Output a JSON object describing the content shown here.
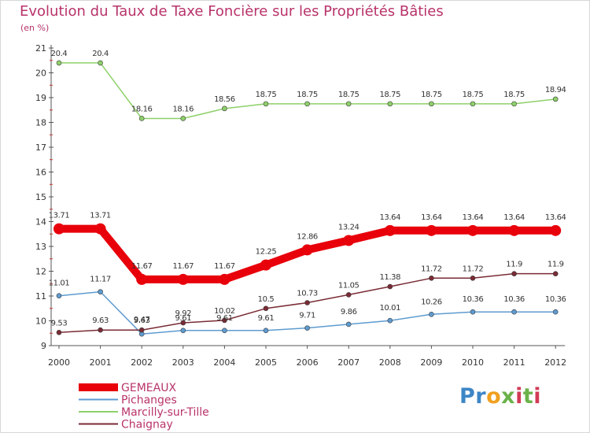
{
  "chart_data": {
    "type": "line",
    "title": "Evolution du Taux de Taxe Foncière sur les Propriétés Bâties",
    "subtitle": "(en %)",
    "xlabel": "",
    "ylabel": "",
    "ylim": [
      9,
      21
    ],
    "yticks": [
      "9",
      "10",
      "11",
      "12",
      "13",
      "14",
      "15",
      "16",
      "17",
      "18",
      "19",
      "20",
      "21"
    ],
    "categories": [
      "2000",
      "2001",
      "2002",
      "2003",
      "2004",
      "2005",
      "2006",
      "2007",
      "2008",
      "2009",
      "2010",
      "2011",
      "2012"
    ],
    "series": [
      {
        "name": "GEMEAUX",
        "color": "#e8000b",
        "values": [
          13.71,
          13.71,
          11.67,
          11.67,
          11.67,
          12.25,
          12.86,
          13.24,
          13.64,
          13.64,
          13.64,
          13.64,
          13.64
        ],
        "labels": [
          "13.71",
          "13.71",
          "11.67",
          "11.67",
          "11.67",
          "12.25",
          "12.86",
          "13.24",
          "13.64",
          "13.64",
          "13.64",
          "13.64",
          "13.64"
        ]
      },
      {
        "name": "Pichanges",
        "color": "#5e9bd0",
        "values": [
          11.01,
          11.17,
          9.47,
          9.61,
          9.61,
          9.61,
          9.71,
          9.86,
          10.01,
          10.26,
          10.36,
          10.36,
          10.36
        ],
        "labels": [
          "11.01",
          "11.17",
          "9.47",
          "9.61",
          "9.61",
          "9.61",
          "9.71",
          "9.86",
          "10.01",
          "10.26",
          "10.36",
          "10.36",
          "10.36"
        ]
      },
      {
        "name": "Marcilly-sur-Tille",
        "color": "#8ed06a",
        "values": [
          20.4,
          20.4,
          18.16,
          18.16,
          18.56,
          18.75,
          18.75,
          18.75,
          18.75,
          18.75,
          18.75,
          18.75,
          18.94
        ],
        "labels": [
          "20.4",
          "20.4",
          "18.16",
          "18.16",
          "18.56",
          "18.75",
          "18.75",
          "18.75",
          "18.75",
          "18.75",
          "18.75",
          "18.75",
          "18.94"
        ]
      },
      {
        "name": "Chaignay",
        "color": "#7a2b35",
        "values": [
          9.53,
          9.63,
          9.63,
          9.92,
          10.02,
          10.5,
          10.73,
          11.05,
          11.38,
          11.72,
          11.72,
          11.9,
          11.9
        ],
        "labels": [
          "9.53",
          "9.63",
          "9.63",
          "9.92",
          "10.02",
          "10.5",
          "10.73",
          "11.05",
          "11.38",
          "11.72",
          "11.72",
          "11.9",
          "11.9"
        ]
      }
    ],
    "legend": "bottom-left",
    "grid": false
  },
  "logo": {
    "parts": [
      "Pr",
      "o",
      "x",
      "i",
      "t",
      "i"
    ]
  },
  "colors": {
    "title": "#b8336a",
    "axis": "#333333"
  }
}
